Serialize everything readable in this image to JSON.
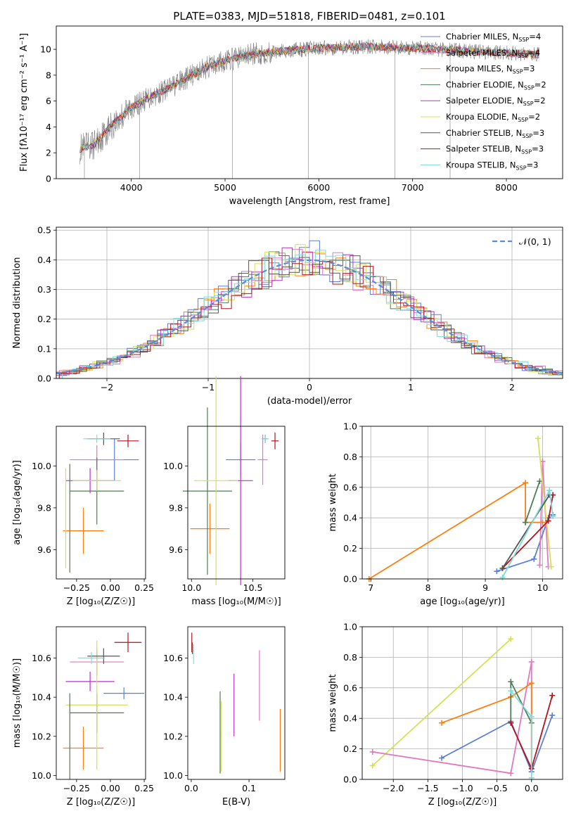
{
  "figure": {
    "title": "PLATE=0383, MJD=51818, FIBERID=0481, z=0.101"
  },
  "colors": {
    "chabrier_miles": "#5b7fd6",
    "salpeter_miles": "#e377c2",
    "kroupa_miles": "#ff7f0e",
    "chabrier_elodie": "#4f7d56",
    "salpeter_elodie": "#bf2fc7",
    "kroupa_elodie": "#d4e157",
    "chabrier_stelib": "#555555",
    "salpeter_stelib": "#b5121b",
    "kroupa_stelib": "#7fdbdb",
    "data": "#808080",
    "normal": "#5b8bd9"
  },
  "chart_data": [
    {
      "id": "spectrum",
      "type": "line",
      "xlabel": "wavelength [Angstrom, rest frame]",
      "ylabel": "Flux [fλ10⁻¹⁷ erg cm⁻² s⁻¹ A⁻¹]",
      "xlim": [
        3200,
        8600
      ],
      "ylim": [
        0,
        11.8
      ],
      "xticks": [
        "4000",
        "5000",
        "6000",
        "7000",
        "8000"
      ],
      "yticks": [
        "0",
        "2",
        "4",
        "6",
        "8",
        "10"
      ],
      "grid": false,
      "legend_position": "right",
      "legend": [
        "Chabrier MILES, N_SSP=4",
        "Salpeter MILES, N_SSP=4",
        "Kroupa MILES, N_SSP=3",
        "Chabrier ELODIE, N_SSP=2",
        "Salpeter ELODIE, N_SSP=2",
        "Kroupa ELODIE, N_SSP=2",
        "Chabrier STELIB, N_SSP=3",
        "Salpeter STELIB, N_SSP=3",
        "Kroupa STELIB, N_SSP=3"
      ],
      "continuum": {
        "x": [
          3450,
          3600,
          3700,
          3800,
          3900,
          4000,
          4200,
          4400,
          4600,
          4800,
          5000,
          5200,
          5500,
          6000,
          6500,
          7000,
          7500,
          8000,
          8350
        ],
        "y": [
          2.3,
          2.6,
          3.4,
          4.2,
          4.8,
          5.5,
          6.3,
          7.0,
          7.8,
          8.6,
          9.1,
          9.5,
          9.8,
          10.1,
          10.2,
          10.1,
          9.9,
          9.7,
          9.6
        ]
      }
    },
    {
      "id": "residuals",
      "type": "histogram",
      "xlabel": "(data-model)/error",
      "ylabel": "Normed distribution",
      "xlim": [
        -2.5,
        2.5
      ],
      "ylim": [
        0,
        0.51
      ],
      "xticks": [
        "−2",
        "−1",
        "0",
        "1",
        "2"
      ],
      "yticks": [
        "0.0",
        "0.1",
        "0.2",
        "0.3",
        "0.4",
        "0.5"
      ],
      "grid": true,
      "legend_position": "top-right",
      "legend": [
        "𝒩(0, 1)"
      ]
    },
    {
      "id": "age_vs_Z",
      "type": "scatter",
      "xlabel": "Z [log₁₀(Z/Z☉)]",
      "ylabel": "age  [log₁₀(age/yr)]",
      "xlim": [
        -0.4,
        0.26
      ],
      "ylim": [
        9.46,
        10.19
      ],
      "xticks": [
        "−0.25",
        "0.00",
        "0.25"
      ],
      "yticks": [
        "9.6",
        "9.8",
        "10.0"
      ],
      "points": [
        {
          "s": "chabrier_miles",
          "x": 0.03,
          "y": 10.03,
          "xerr": 0.18,
          "yerr": 0.1
        },
        {
          "s": "salpeter_miles",
          "x": -0.1,
          "y": 10.03,
          "xerr": 0.2,
          "yerr": 0.07
        },
        {
          "s": "kroupa_miles",
          "x": -0.2,
          "y": 9.69,
          "xerr": 0.15,
          "yerr": 0.11
        },
        {
          "s": "chabrier_elodie",
          "x": -0.1,
          "y": 9.88,
          "xerr": 0.2,
          "yerr": 0.16
        },
        {
          "s": "salpeter_elodie",
          "x": -0.15,
          "y": 9.93,
          "xerr": 0.18,
          "yerr": 0.06
        },
        {
          "s": "kroupa_elodie",
          "x": -0.1,
          "y": 9.93,
          "xerr": 0.18,
          "yerr": 0.05
        },
        {
          "s": "chabrier_stelib",
          "x": -0.05,
          "y": 10.13,
          "xerr": 0.12,
          "yerr": 0.03
        },
        {
          "s": "salpeter_stelib",
          "x": 0.13,
          "y": 10.12,
          "xerr": 0.08,
          "yerr": 0.03
        },
        {
          "s": "kroupa_stelib",
          "x": -0.1,
          "y": 10.13,
          "xerr": 0.1,
          "yerr": 0.02
        },
        {
          "s": "chabrier_elodie",
          "x": -0.3,
          "y": 9.75,
          "xerr": 0.0,
          "yerr": 0.26
        },
        {
          "s": "kroupa_elodie",
          "x": -0.33,
          "y": 9.75,
          "xerr": 0.0,
          "yerr": 0.24
        }
      ]
    },
    {
      "id": "age_vs_mass",
      "type": "scatter",
      "xlabel": "mass [log₁₀(M/M☉)]",
      "ylabel": "",
      "xlim": [
        9.97,
        10.76
      ],
      "ylim": [
        9.46,
        10.19
      ],
      "xticks": [
        "10.0",
        "10.5"
      ],
      "yticks": [
        "9.6",
        "9.8",
        "10.0"
      ],
      "points": [
        {
          "s": "chabrier_miles",
          "x": 10.4,
          "y": 10.03,
          "xerr": 0.12,
          "yerr": 0.08
        },
        {
          "s": "salpeter_miles",
          "x": 10.58,
          "y": 10.03,
          "xerr": 0.04,
          "yerr": 0.12
        },
        {
          "s": "kroupa_miles",
          "x": 10.15,
          "y": 9.7,
          "xerr": 0.16,
          "yerr": 0.12
        },
        {
          "s": "chabrier_elodie",
          "x": 10.13,
          "y": 9.88,
          "xerr": 0.2,
          "yerr": 0.4
        },
        {
          "s": "salpeter_elodie",
          "x": 10.4,
          "y": 9.93,
          "xerr": 0.1,
          "yerr": 0.5
        },
        {
          "s": "kroupa_elodie",
          "x": 10.2,
          "y": 9.93,
          "xerr": 0.18,
          "yerr": 0.5
        },
        {
          "s": "chabrier_stelib",
          "x": 10.6,
          "y": 10.13,
          "xerr": 0.02,
          "yerr": 0.02
        },
        {
          "s": "salpeter_stelib",
          "x": 10.68,
          "y": 10.12,
          "xerr": 0.03,
          "yerr": 0.04
        },
        {
          "s": "kroupa_stelib",
          "x": 10.6,
          "y": 10.13,
          "xerr": 0.03,
          "yerr": 0.02
        }
      ]
    },
    {
      "id": "weight_vs_age",
      "type": "line",
      "xlabel": "age  [log₁₀(age/yr)]",
      "ylabel": "mass weight",
      "xlim": [
        6.85,
        10.35
      ],
      "ylim": [
        0,
        1
      ],
      "xticks": [
        "7",
        "8",
        "9",
        "10"
      ],
      "yticks": [
        "0.0",
        "0.2",
        "0.4",
        "0.6",
        "0.8",
        "1.0"
      ],
      "grid": true,
      "series": [
        {
          "s": "kroupa_miles",
          "x": [
            6.97,
            9.7,
            9.7,
            10.0
          ],
          "y": [
            0.0,
            0.63,
            0.37,
            0.37
          ]
        },
        {
          "s": "chabrier_miles",
          "x": [
            9.2,
            9.85,
            10.1,
            10.18
          ],
          "y": [
            0.05,
            0.13,
            0.4,
            0.42
          ]
        },
        {
          "s": "salpeter_miles",
          "x": [
            9.95,
            10.0,
            10.1
          ],
          "y": [
            0.09,
            0.77,
            0.08
          ]
        },
        {
          "s": "chabrier_elodie",
          "x": [
            9.7,
            9.95
          ],
          "y": [
            0.37,
            0.64
          ]
        },
        {
          "s": "kroupa_elodie",
          "x": [
            9.92,
            10.15
          ],
          "y": [
            0.92,
            0.08
          ]
        },
        {
          "s": "salpeter_stelib",
          "x": [
            9.3,
            10.1,
            10.18
          ],
          "y": [
            0.07,
            0.38,
            0.55
          ]
        },
        {
          "s": "chabrier_stelib",
          "x": [
            9.3,
            10.12
          ],
          "y": [
            0.07,
            0.55
          ]
        },
        {
          "s": "kroupa_stelib",
          "x": [
            9.3,
            10.12,
            10.18
          ],
          "y": [
            0.01,
            0.58,
            0.41
          ]
        }
      ]
    },
    {
      "id": "mass_vs_Z",
      "type": "scatter",
      "xlabel": "Z [log₁₀(Z/Z☉)]",
      "ylabel": "mass [log₁₀(M/M☉)]",
      "xlim": [
        -0.4,
        0.26
      ],
      "ylim": [
        9.98,
        10.76
      ],
      "xticks": [
        "−0.25",
        "0.00",
        "0.25"
      ],
      "yticks": [
        "10.0",
        "10.2",
        "10.4",
        "10.6"
      ],
      "points": [
        {
          "s": "chabrier_miles",
          "x": 0.1,
          "y": 10.42,
          "xerr": 0.15,
          "yerr": 0.03
        },
        {
          "s": "salpeter_miles",
          "x": -0.1,
          "y": 10.58,
          "xerr": 0.2,
          "yerr": 0.07
        },
        {
          "s": "kroupa_miles",
          "x": -0.2,
          "y": 10.14,
          "xerr": 0.15,
          "yerr": 0.11
        },
        {
          "s": "chabrier_elodie",
          "x": -0.1,
          "y": 10.32,
          "xerr": 0.2,
          "yerr": 0.1
        },
        {
          "s": "salpeter_elodie",
          "x": -0.15,
          "y": 10.48,
          "xerr": 0.18,
          "yerr": 0.05
        },
        {
          "s": "kroupa_elodie",
          "x": -0.1,
          "y": 10.36,
          "xerr": 0.23,
          "yerr": 0.33
        },
        {
          "s": "chabrier_stelib",
          "x": -0.05,
          "y": 10.61,
          "xerr": 0.12,
          "yerr": 0.04
        },
        {
          "s": "salpeter_stelib",
          "x": 0.13,
          "y": 10.68,
          "xerr": 0.1,
          "yerr": 0.05
        },
        {
          "s": "kroupa_stelib",
          "x": -0.14,
          "y": 10.6,
          "xerr": 0.1,
          "yerr": 0.03
        },
        {
          "s": "chabrier_elodie",
          "x": -0.3,
          "y": 10.2,
          "xerr": 0.0,
          "yerr": 0.22
        }
      ]
    },
    {
      "id": "mass_vs_ebv",
      "type": "scatter",
      "xlabel": "E(B-V)",
      "ylabel": "",
      "xlim": [
        -0.006,
        0.162
      ],
      "ylim": [
        9.98,
        10.76
      ],
      "xticks": [
        "0.0",
        "0.1"
      ],
      "yticks": [
        "10.0",
        "10.2",
        "10.4",
        "10.6"
      ],
      "points": [
        {
          "s": "salpeter_stelib",
          "x": 0.001,
          "y": 10.68,
          "xerr": 0.0,
          "yerr": 0.05
        },
        {
          "s": "kroupa_stelib",
          "x": 0.004,
          "y": 10.62,
          "xerr": 0.0,
          "yerr": 0.05
        },
        {
          "s": "chabrier_stelib",
          "x": 0.002,
          "y": 10.65,
          "xerr": 0.0,
          "yerr": 0.03
        },
        {
          "s": "chabrier_elodie",
          "x": 0.05,
          "y": 10.22,
          "xerr": 0.0,
          "yerr": 0.21
        },
        {
          "s": "kroupa_elodie",
          "x": 0.052,
          "y": 10.2,
          "xerr": 0.0,
          "yerr": 0.18
        },
        {
          "s": "salpeter_elodie",
          "x": 0.074,
          "y": 10.36,
          "xerr": 0.0,
          "yerr": 0.16
        },
        {
          "s": "salpeter_miles",
          "x": 0.118,
          "y": 10.46,
          "xerr": 0.0,
          "yerr": 0.18
        },
        {
          "s": "kroupa_miles",
          "x": 0.154,
          "y": 10.18,
          "xerr": 0.0,
          "yerr": 0.16
        }
      ]
    },
    {
      "id": "weight_vs_Z",
      "type": "line",
      "xlabel": "Z [log₁₀(Z/Z☉)]",
      "ylabel": "mass weight",
      "xlim": [
        -2.45,
        0.45
      ],
      "ylim": [
        0,
        1
      ],
      "xticks": [
        "−2.0",
        "−1.5",
        "−1.0",
        "−0.5",
        "0.0"
      ],
      "yticks": [
        "0.0",
        "0.2",
        "0.4",
        "0.6",
        "0.8",
        "1.0"
      ],
      "grid": true,
      "series": [
        {
          "s": "kroupa_elodie",
          "x": [
            -2.3,
            -0.3
          ],
          "y": [
            0.09,
            0.92
          ]
        },
        {
          "s": "salpeter_miles",
          "x": [
            -2.3,
            -0.3,
            0.0,
            0.0
          ],
          "y": [
            0.18,
            0.04,
            0.77,
            0.09
          ]
        },
        {
          "s": "kroupa_miles",
          "x": [
            -1.3,
            -0.3,
            0.0,
            0.0
          ],
          "y": [
            0.37,
            0.54,
            0.63,
            0.05
          ]
        },
        {
          "s": "chabrier_miles",
          "x": [
            -1.3,
            -0.3,
            0.0,
            0.3
          ],
          "y": [
            0.14,
            0.38,
            0.05,
            0.42
          ]
        },
        {
          "s": "chabrier_elodie",
          "x": [
            -0.3,
            -0.3,
            0.0
          ],
          "y": [
            0.37,
            0.64,
            0.37
          ]
        },
        {
          "s": "salpeter_stelib",
          "x": [
            -0.3,
            0.0,
            0.3
          ],
          "y": [
            0.37,
            0.07,
            0.55
          ]
        },
        {
          "s": "kroupa_stelib",
          "x": [
            -0.3,
            0.0,
            0.0
          ],
          "y": [
            0.58,
            0.41,
            0.01
          ]
        }
      ]
    }
  ]
}
